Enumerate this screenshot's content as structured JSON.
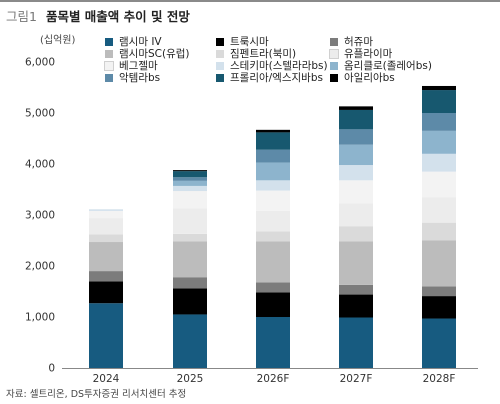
{
  "header": {
    "figure_label": "그림1",
    "title": "품목별 매출액 추이 및 전망"
  },
  "footer": {
    "source": "자료: 셀트리온, DS투자증권 리서치센터 추정"
  },
  "chart_data": {
    "type": "bar",
    "stacked": true,
    "title": "품목별 매출액 추이 및 전망",
    "ylabel": "(십억원)",
    "ylim": [
      0,
      6000
    ],
    "yticks": [
      0,
      1000,
      2000,
      3000,
      4000,
      5000,
      6000
    ],
    "ytick_labels": [
      "0",
      "1,000",
      "2,000",
      "3,000",
      "4,000",
      "5,000",
      "6,000"
    ],
    "grid": false,
    "legend_position": "top",
    "categories": [
      "2024",
      "2025",
      "2026F",
      "2027F",
      "2028F"
    ],
    "series": [
      {
        "name": "램시마 IV",
        "color": "#175b80",
        "values": [
          1270,
          1050,
          1000,
          990,
          970
        ]
      },
      {
        "name": "트룩시마",
        "color": "#000000",
        "values": [
          430,
          510,
          480,
          450,
          440
        ]
      },
      {
        "name": "허쥬마",
        "color": "#7c7c7c",
        "values": [
          200,
          220,
          200,
          190,
          190
        ]
      },
      {
        "name": "램시마SC(유럽)",
        "color": "#bcbcbc",
        "values": [
          570,
          700,
          800,
          850,
          900
        ]
      },
      {
        "name": "짐펜트라(북미)",
        "color": "#dadada",
        "values": [
          150,
          150,
          200,
          300,
          350
        ]
      },
      {
        "name": "유플라이마",
        "color": "#ececec",
        "values": [
          320,
          500,
          400,
          450,
          500
        ]
      },
      {
        "name": "베그젤마",
        "color": "#f3f3f3",
        "values": [
          140,
          340,
          400,
          450,
          500
        ]
      },
      {
        "name": "스테키마(스텔라라bs)",
        "color": "#d3e1ec",
        "values": [
          20,
          100,
          200,
          300,
          350
        ]
      },
      {
        "name": "옴리클로(졸레어bs)",
        "color": "#8db4cd",
        "values": [
          5,
          100,
          350,
          400,
          450
        ]
      },
      {
        "name": "악템라bs",
        "color": "#5d8aa8",
        "values": [
          0,
          70,
          250,
          300,
          350
        ]
      },
      {
        "name": "프롤리아/엑스지바bs",
        "color": "#17586f",
        "values": [
          0,
          120,
          340,
          380,
          450
        ]
      },
      {
        "name": "아일리아bs",
        "color": "#000000",
        "values": [
          0,
          20,
          50,
          70,
          80
        ]
      }
    ]
  }
}
